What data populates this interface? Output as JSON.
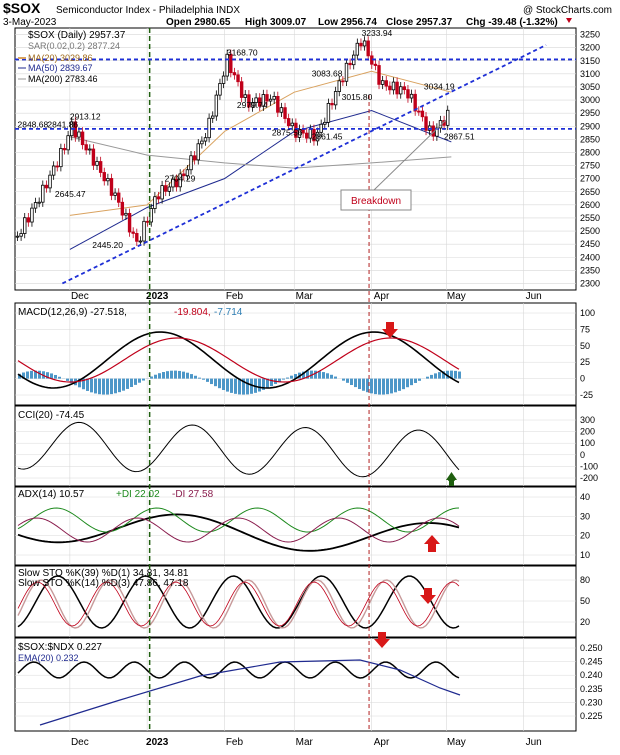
{
  "header": {
    "symbol": "$SOX",
    "name": "Semiconductor Index - Philadelphia  INDX",
    "brand": "@ StockCharts.com",
    "date": "3-May-2023",
    "open": "Open 2980.65",
    "high": "High 3009.07",
    "low": "Low 2956.74",
    "close": "Close 2957.37",
    "chg": "Chg -39.48 (-1.32%)"
  },
  "legend": {
    "main": "$SOX (Daily) 2957.37",
    "sar": "SAR(0.02,0.2) 2877.24",
    "ma20": "MA(20) 3029.86",
    "ma50": "MA(50) 2839.67",
    "ma200": "MA(200) 2783.46"
  },
  "x_labels": [
    "Dec",
    "2023",
    "Feb",
    "Mar",
    "Apr",
    "May",
    "Jun"
  ],
  "annotations": {
    "breakdown": "Breakdown",
    "price_labels": [
      "3233.94",
      "3168.70",
      "3083.68",
      "3034.19",
      "3015.80",
      "2979.74",
      "2913.12",
      "2848.68",
      "2841.86",
      "2875.56",
      "2861.45",
      "2867.51",
      "2704.29",
      "2645.47",
      "2445.20"
    ]
  },
  "panels": {
    "macd": {
      "label": "MACD(12,26,9) -27.518,",
      "signal": "-19.804,",
      "hist": "-7.714",
      "ticks": [
        "100",
        "75",
        "50",
        "25",
        "0",
        "-25"
      ]
    },
    "cci": {
      "label": "CCI(20) -74.45",
      "ticks": [
        "300",
        "200",
        "100",
        "0",
        "-100",
        "-200"
      ]
    },
    "adx": {
      "label": "ADX(14) 10.57",
      "pdi": "+DI 22.02",
      "mdi": "-DI 27.58",
      "ticks": [
        "40",
        "30",
        "20",
        "10"
      ]
    },
    "sto1": {
      "label": "Slow STO %K(39) %D(1) 34.81, 34.81",
      "ticks": [
        "80",
        "50",
        "20"
      ]
    },
    "sto2": {
      "label": "Slow STO %K(14) %D(3) 47.86, 47.18"
    },
    "ratio": {
      "label": "$SOX:$NDX 0.227",
      "ema": "EMA(20) 0.232",
      "ticks": [
        "0.250",
        "0.245",
        "0.240",
        "0.235",
        "0.230",
        "0.225"
      ]
    }
  },
  "chart_data": {
    "type": "line",
    "title": "$SOX Semiconductor Index - Philadelphia INDX",
    "ylim": [
      2275,
      3275
    ],
    "y_ticks": [
      3250,
      3200,
      3150,
      3100,
      3050,
      3000,
      2950,
      2900,
      2850,
      2800,
      2750,
      2700,
      2650,
      2600,
      2550,
      2500,
      2450,
      2400,
      2350,
      2300
    ],
    "x_range": [
      "2022-11-09",
      "2023-06-22"
    ],
    "series": [
      {
        "name": "$SOX (Daily)",
        "x": [
          "2022-11-10",
          "2022-11-20",
          "2022-11-30",
          "2022-12-01",
          "2022-12-10",
          "2022-12-20",
          "2022-12-28",
          "2023-01-05",
          "2023-01-15",
          "2023-01-25",
          "2023-02-02",
          "2023-02-10",
          "2023-02-20",
          "2023-03-01",
          "2023-03-10",
          "2023-03-20",
          "2023-03-28",
          "2023-04-05",
          "2023-04-15",
          "2023-04-25",
          "2023-05-03"
        ],
        "values": [
          2480,
          2650,
          2845,
          2913,
          2780,
          2620,
          2450,
          2640,
          2705,
          2880,
          3155,
          2985,
          3010,
          2880,
          2861,
          3083,
          3233,
          3060,
          3034,
          2868,
          2957
        ]
      },
      {
        "name": "MA(20)",
        "x": [
          "2022-12-01",
          "2023-01-01",
          "2023-02-01",
          "2023-03-01",
          "2023-04-01",
          "2023-05-03"
        ],
        "values": [
          2560,
          2600,
          2880,
          3030,
          3110,
          3030
        ]
      },
      {
        "name": "MA(50)",
        "x": [
          "2022-12-01",
          "2023-01-01",
          "2023-02-01",
          "2023-03-01",
          "2023-04-01",
          "2023-05-03"
        ],
        "values": [
          2430,
          2590,
          2700,
          2880,
          2960,
          2840
        ]
      },
      {
        "name": "MA(200)",
        "x": [
          "2022-12-01",
          "2023-01-01",
          "2023-02-01",
          "2023-03-01",
          "2023-04-01",
          "2023-05-03"
        ],
        "values": [
          2860,
          2790,
          2760,
          2740,
          2760,
          2783
        ]
      }
    ],
    "support_line": 2890,
    "resistance_line": 3155
  },
  "colors": {
    "up": "#000000",
    "down": "#c0001a",
    "grid": "#d8d8d8",
    "trend": "#1e2fd6",
    "marker_green": "#1f5f0f",
    "marker_red": "#d81818"
  }
}
